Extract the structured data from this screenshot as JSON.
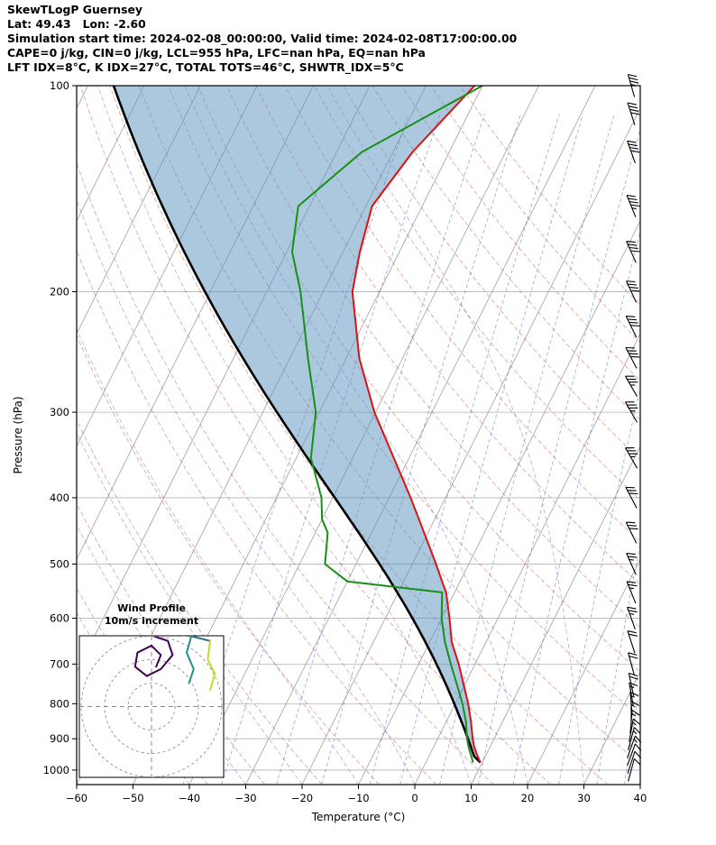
{
  "header": {
    "title": "SkewTLogP Guernsey",
    "location": "Lat: 49.43   Lon: -2.60",
    "times": "Simulation start time: 2024-02-08_00:00:00, Valid time: 2024-02-08T17:00:00.00",
    "indices_line1": "CAPE=0 j/kg, CIN=0 j/kg, LCL=955 hPa, LFC=nan hPa, EQ=nan hPa",
    "indices_line2": "LFT IDX=8°C, K IDX=27°C, TOTAL TOTS=46°C, SHWTR_IDX=5°C"
  },
  "chart_data": {
    "type": "line",
    "chart_kind": "skew-t-log-p-sounding",
    "title": "SkewTLogP Guernsey",
    "xlabel": "Temperature (°C)",
    "ylabel": "Pressure (hPa)",
    "x_ticks": [
      -60,
      -50,
      -40,
      -30,
      -20,
      -10,
      0,
      10,
      20,
      30,
      40
    ],
    "y_ticks": [
      100,
      200,
      300,
      400,
      500,
      600,
      700,
      800,
      900,
      1000
    ],
    "xlim": [
      -60,
      40
    ],
    "plim": [
      100,
      1050
    ],
    "skew": 0.5,
    "grid": true,
    "sounding": {
      "pressure_hpa": [
        975,
        950,
        925,
        900,
        850,
        800,
        750,
        700,
        650,
        600,
        550,
        530,
        500,
        450,
        430,
        400,
        350,
        300,
        250,
        200,
        175,
        150,
        125,
        100
      ],
      "temperature_c": [
        9.7,
        8.4,
        7.2,
        6.2,
        4.4,
        2.3,
        -0.2,
        -2.9,
        -6.1,
        -8.6,
        -11.5,
        -13.2,
        -15.8,
        -20.7,
        -22.8,
        -26.2,
        -32.7,
        -40.2,
        -47.7,
        -54.8,
        -57.0,
        -58.9,
        -56.5,
        -51.4
      ],
      "dewpoint_c": [
        8.4,
        7.3,
        6.2,
        5.2,
        3.5,
        1.3,
        -1.4,
        -4.3,
        -7.3,
        -10.0,
        -12.2,
        -30.0,
        -35.5,
        -37.8,
        -40.0,
        -42.0,
        -47.4,
        -50.6,
        -56.8,
        -64.0,
        -69.0,
        -72.0,
        -65.5,
        -50.0
      ]
    },
    "parcel": {
      "start_pressure_hpa": 975,
      "start_temperature_c": 9.7,
      "lcl_pressure_hpa": 955
    },
    "indices": {
      "cape_jkg": 0,
      "cin_jkg": 0,
      "lcl_hpa": 955,
      "lfc_hpa": "nan",
      "eq_hpa": "nan",
      "lft_idx_c": 8,
      "k_idx_c": 27,
      "total_tots_c": 46,
      "shwtr_idx_c": 5
    },
    "wind_barbs": {
      "pressure_hpa": [
        1000,
        975,
        950,
        925,
        900,
        875,
        850,
        825,
        800,
        775,
        750,
        700,
        650,
        600,
        550,
        500,
        450,
        400,
        350,
        300,
        275,
        250,
        225,
        200,
        175,
        150,
        125,
        110,
        100
      ],
      "speed_kt": [
        8,
        10,
        12,
        13,
        14,
        15,
        15,
        16,
        16,
        17,
        18,
        20,
        22,
        24,
        25,
        27,
        30,
        32,
        34,
        36,
        37,
        38,
        38,
        40,
        42,
        43,
        40,
        38,
        35
      ],
      "direction_deg": [
        15,
        18,
        20,
        20,
        15,
        10,
        5,
        0,
        355,
        350,
        348,
        345,
        342,
        340,
        338,
        336,
        334,
        332,
        330,
        330,
        330,
        332,
        334,
        335,
        336,
        338,
        340,
        342,
        344
      ]
    },
    "background_lines": {
      "isotherms_c": {
        "min": -130,
        "max": 40,
        "step": 10
      },
      "dry_adiabats_c": {
        "min": -40,
        "max": 150,
        "step": 10
      },
      "moist_adiabats_c": {
        "min": -40,
        "max": 30,
        "step": 10
      },
      "mixing_ratio_gkg": [
        0.1,
        0.2,
        0.5,
        1,
        2,
        3,
        5,
        8,
        12,
        20,
        30,
        40
      ]
    },
    "hodograph": {
      "title": "Wind Profile",
      "subtitle": "10m/s increment",
      "ring_interval_ms": 10,
      "rings_ms": [
        10,
        20,
        30
      ],
      "segments": [
        {
          "color": "#440154",
          "points_ms": [
            [
              2,
              17
            ],
            [
              4,
              22
            ],
            [
              0,
              26
            ],
            [
              -2,
              25
            ],
            [
              -6,
              23
            ],
            [
              -7,
              17
            ],
            [
              -2,
              13
            ],
            [
              4,
              16
            ],
            [
              9,
              22
            ],
            [
              7,
              28
            ],
            [
              1,
              30
            ]
          ]
        },
        {
          "color": "#31688e",
          "points_ms": [
            [
              1,
              30
            ],
            [
              9,
              31
            ],
            [
              17,
              30
            ],
            [
              25,
              28
            ]
          ]
        },
        {
          "color": "#21918c",
          "points_ms": [
            [
              17,
              30
            ],
            [
              15,
              23
            ],
            [
              18,
              16
            ],
            [
              16,
              10
            ]
          ]
        },
        {
          "color": "#bddf26",
          "points_ms": [
            [
              25,
              28
            ],
            [
              24,
              20
            ],
            [
              27,
              14
            ],
            [
              25,
              7
            ]
          ]
        }
      ]
    },
    "colors": {
      "temperature": "#dd1111",
      "dewpoint": "#189018",
      "parcel": "#000000",
      "shade": "rgba(90,145,190,0.5)",
      "isotherm": "#9e9e9e",
      "isobar": "#b5b5b5",
      "dry_adiabat": "rgba(205,70,70,0.55)",
      "moist_adiabat": "rgba(130,80,185,0.5)",
      "mixing_ratio": "rgba(65,90,215,0.55)",
      "barb": "#000000",
      "axis": "#000000"
    }
  }
}
